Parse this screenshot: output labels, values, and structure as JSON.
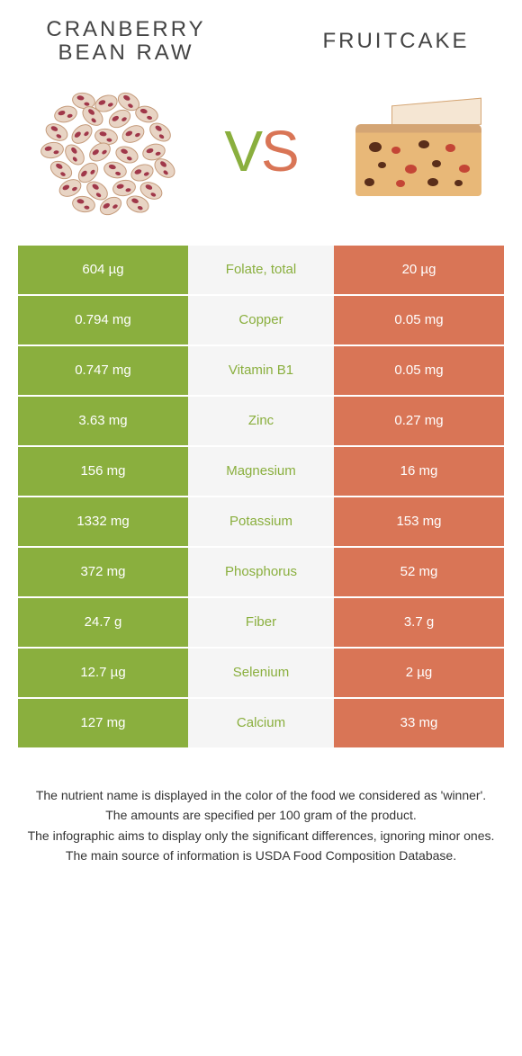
{
  "header": {
    "left_title_line1": "CRANBERRY",
    "left_title_line2": "BEAN RAW",
    "right_title": "FRUITCAKE"
  },
  "vs": {
    "v": "V",
    "s": "S"
  },
  "colors": {
    "green": "#8aaf3e",
    "orange": "#d97556",
    "mid_bg": "#f5f5f5"
  },
  "rows": [
    {
      "left": "604 µg",
      "mid": "Folate, total",
      "right": "20 µg",
      "mid_color": "green"
    },
    {
      "left": "0.794 mg",
      "mid": "Copper",
      "right": "0.05 mg",
      "mid_color": "green"
    },
    {
      "left": "0.747 mg",
      "mid": "Vitamin B1",
      "right": "0.05 mg",
      "mid_color": "green"
    },
    {
      "left": "3.63 mg",
      "mid": "Zinc",
      "right": "0.27 mg",
      "mid_color": "green"
    },
    {
      "left": "156 mg",
      "mid": "Magnesium",
      "right": "16 mg",
      "mid_color": "green"
    },
    {
      "left": "1332 mg",
      "mid": "Potassium",
      "right": "153 mg",
      "mid_color": "green"
    },
    {
      "left": "372 mg",
      "mid": "Phosphorus",
      "right": "52 mg",
      "mid_color": "green"
    },
    {
      "left": "24.7 g",
      "mid": "Fiber",
      "right": "3.7 g",
      "mid_color": "green"
    },
    {
      "left": "12.7 µg",
      "mid": "Selenium",
      "right": "2 µg",
      "mid_color": "green"
    },
    {
      "left": "127 mg",
      "mid": "Calcium",
      "right": "33 mg",
      "mid_color": "green"
    }
  ],
  "footer": {
    "line1": "The nutrient name is displayed in the color of the food we considered as 'winner'.",
    "line2": "The amounts are specified per 100 gram of the product.",
    "line3": "The infographic aims to display only the significant differences, ignoring minor ones.",
    "line4": "The main source of information is USDA Food Composition Database."
  }
}
